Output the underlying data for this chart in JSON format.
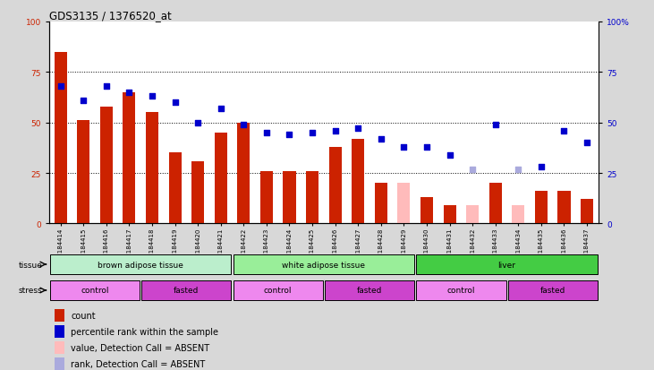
{
  "title": "GDS3135 / 1376520_at",
  "samples": [
    "GSM184414",
    "GSM184415",
    "GSM184416",
    "GSM184417",
    "GSM184418",
    "GSM184419",
    "GSM184420",
    "GSM184421",
    "GSM184422",
    "GSM184423",
    "GSM184424",
    "GSM184425",
    "GSM184426",
    "GSM184427",
    "GSM184428",
    "GSM184429",
    "GSM184430",
    "GSM184431",
    "GSM184432",
    "GSM184433",
    "GSM184434",
    "GSM184435",
    "GSM184436",
    "GSM184437"
  ],
  "count_values": [
    85,
    51,
    58,
    65,
    55,
    35,
    31,
    45,
    50,
    26,
    26,
    26,
    38,
    42,
    20,
    20,
    13,
    9,
    9,
    20,
    9,
    16,
    16,
    12
  ],
  "count_absent": [
    false,
    false,
    false,
    false,
    false,
    false,
    false,
    false,
    false,
    false,
    false,
    false,
    false,
    false,
    false,
    true,
    false,
    false,
    true,
    false,
    true,
    false,
    false,
    false
  ],
  "rank_values": [
    68,
    61,
    68,
    65,
    63,
    60,
    50,
    57,
    49,
    45,
    44,
    45,
    46,
    47,
    42,
    38,
    38,
    34,
    27,
    49,
    27,
    28,
    46,
    40
  ],
  "rank_absent": [
    false,
    false,
    false,
    false,
    false,
    false,
    false,
    false,
    false,
    false,
    false,
    false,
    false,
    false,
    false,
    false,
    false,
    false,
    true,
    false,
    true,
    false,
    false,
    false
  ],
  "tissue_groups": [
    {
      "label": "brown adipose tissue",
      "start": 0,
      "end": 8,
      "color": "#aaddaa"
    },
    {
      "label": "white adipose tissue",
      "start": 8,
      "end": 16,
      "color": "#99ee99"
    },
    {
      "label": "liver",
      "start": 16,
      "end": 24,
      "color": "#55dd55"
    }
  ],
  "stress_groups": [
    {
      "label": "control",
      "start": 0,
      "end": 4,
      "type": "control"
    },
    {
      "label": "fasted",
      "start": 4,
      "end": 8,
      "type": "fasted"
    },
    {
      "label": "control",
      "start": 8,
      "end": 12,
      "type": "control"
    },
    {
      "label": "fasted",
      "start": 12,
      "end": 16,
      "type": "fasted"
    },
    {
      "label": "control",
      "start": 16,
      "end": 20,
      "type": "control"
    },
    {
      "label": "fasted",
      "start": 20,
      "end": 24,
      "type": "fasted"
    }
  ],
  "bar_color_present": "#cc2200",
  "bar_color_absent": "#ffbbbb",
  "dot_color_present": "#0000cc",
  "dot_color_absent": "#aaaadd",
  "tissue_color_light": "#bbeecc",
  "tissue_color_medium": "#99ee99",
  "tissue_color_dark": "#44cc44",
  "stress_control_color": "#ee88ee",
  "stress_fasted_color": "#cc44cc",
  "fig_bg": "#d8d8d8",
  "plot_bg": "#ffffff",
  "legend_items": [
    {
      "color": "#cc2200",
      "label": "count"
    },
    {
      "color": "#0000cc",
      "label": "percentile rank within the sample"
    },
    {
      "color": "#ffbbbb",
      "label": "value, Detection Call = ABSENT"
    },
    {
      "color": "#aaaadd",
      "label": "rank, Detection Call = ABSENT"
    }
  ]
}
